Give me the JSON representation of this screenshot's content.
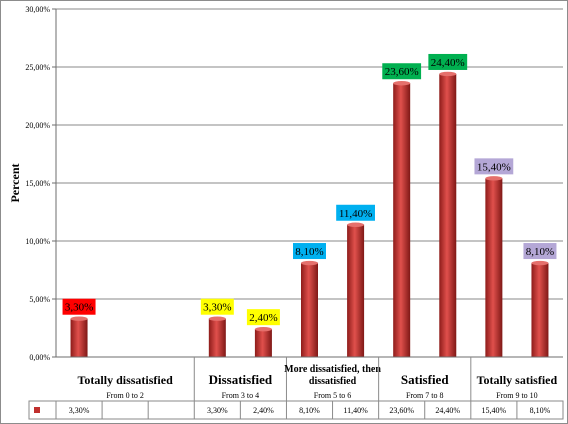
{
  "chart_data": {
    "type": "bar",
    "ylabel": "Percent",
    "ylim": [
      0,
      30
    ],
    "y_ticks": [
      "0,00%",
      "5,00%",
      "10,00%",
      "15,00%",
      "20,00%",
      "25,00%",
      "30,00%"
    ],
    "grid": true,
    "values": [
      3.3,
      null,
      null,
      3.3,
      2.4,
      8.1,
      11.4,
      23.6,
      24.4,
      15.4,
      8.1
    ],
    "table_values": [
      "3,30%",
      "",
      "",
      "3,30%",
      "2,40%",
      "8,10%",
      "11,40%",
      "23,60%",
      "24,40%",
      "15,40%",
      "8,10%"
    ],
    "bar_color": "#c0302e",
    "data_labels": [
      {
        "text": "3,30%",
        "color": "#ff0000"
      },
      {
        "text": "",
        "color": ""
      },
      {
        "text": "",
        "color": ""
      },
      {
        "text": "3,30%",
        "color": "#ffff00"
      },
      {
        "text": "2,40%",
        "color": "#ffff00"
      },
      {
        "text": "8,10%",
        "color": "#00b0f0"
      },
      {
        "text": "11,40%",
        "color": "#00b0f0"
      },
      {
        "text": "23,60%",
        "color": "#00b050"
      },
      {
        "text": "24,40%",
        "color": "#00b050"
      },
      {
        "text": "15,40%",
        "color": "#b4a7d6"
      },
      {
        "text": "8,10%",
        "color": "#b4a7d6"
      }
    ],
    "groups": [
      {
        "name": "Totally dissatisfied",
        "sub": "From 0 to 2",
        "span": [
          0,
          2
        ]
      },
      {
        "name": "Dissatisfied",
        "sub": "From 3 to 4",
        "span": [
          3,
          4
        ]
      },
      {
        "name": "More dissatisfied, then dissatisfied",
        "name_lines": [
          "More dissatisfied, then",
          "dissatisfied"
        ],
        "sub": "From 5 to 6",
        "span": [
          5,
          6
        ]
      },
      {
        "name": "Satisfied",
        "sub": "From 7 to 8",
        "span": [
          7,
          8
        ]
      },
      {
        "name": "Totally  satisfied",
        "sub": "From 9 to 10",
        "span": [
          9,
          10
        ]
      }
    ]
  }
}
